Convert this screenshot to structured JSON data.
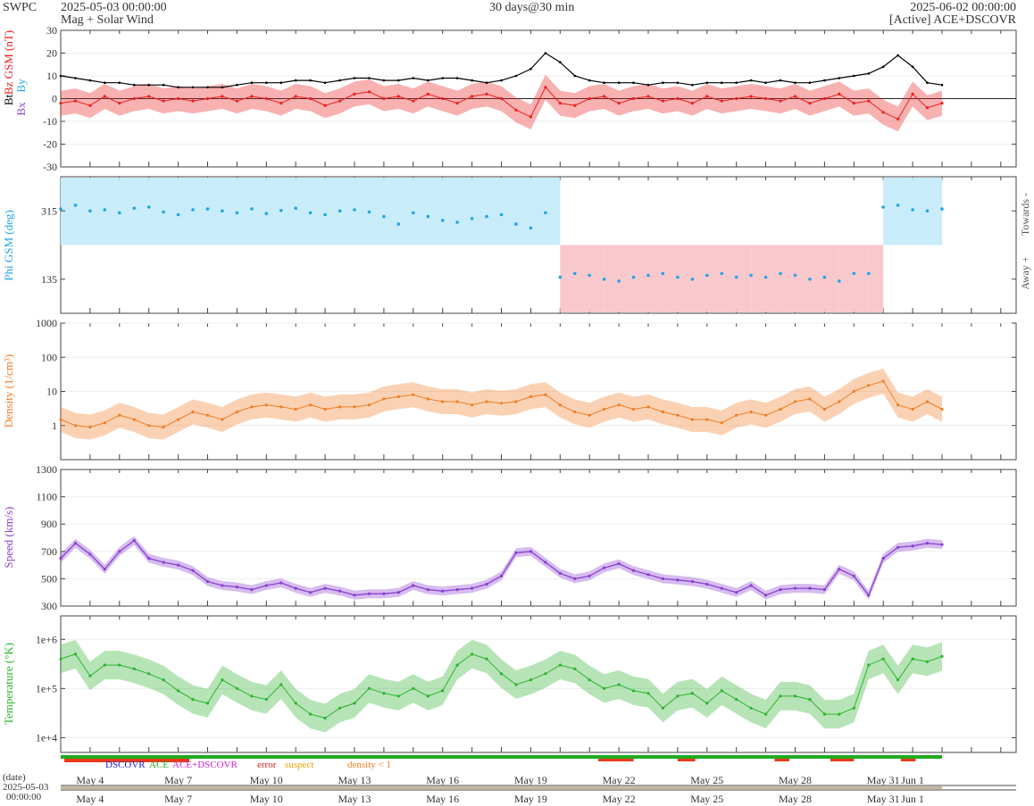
{
  "header": {
    "brand": "SWPC",
    "start": "2025-05-03 00:00:00",
    "source_left": "Mag + Solar Wind",
    "span": "30 days@30 min",
    "end": "2025-06-02 00:00:00",
    "source_right": "[Active] ACE+DSCOVR"
  },
  "colors": {
    "bt": "#000000",
    "bz": "#e8201e",
    "phi": "#21a6e3",
    "density": "#f07d24",
    "speed": "#8a3fd0",
    "temperature": "#2db32d",
    "towards_fill": "#c8ecfa",
    "away_fill": "#f8c8cc",
    "bx": "#8a3fd0",
    "by": "#21a6e3"
  },
  "chart_data": [
    {
      "type": "line",
      "panel": "mag",
      "ylabel": "Bt Bz GSM (nT)",
      "legend": [
        "Bt",
        "Bz",
        "Bx",
        "By"
      ],
      "ylim": [
        -30,
        30
      ],
      "yticks": [
        30,
        20,
        10,
        0,
        -10,
        -20,
        -30
      ],
      "x_days": [
        0,
        0.5,
        1,
        1.5,
        2,
        2.5,
        3,
        3.5,
        4,
        4.5,
        5,
        5.5,
        6,
        6.5,
        7,
        7.5,
        8,
        8.5,
        9,
        9.5,
        10,
        10.5,
        11,
        11.5,
        12,
        12.5,
        13,
        13.5,
        14,
        14.5,
        15,
        15.5,
        16,
        16.5,
        17,
        17.5,
        18,
        18.5,
        19,
        19.5,
        20,
        20.5,
        21,
        21.5,
        22,
        22.5,
        23,
        23.5,
        24,
        24.5,
        25,
        25.5,
        26,
        26.5,
        27,
        27.5,
        28,
        28.5,
        29,
        29.5,
        30
      ],
      "series": [
        {
          "name": "Bt",
          "values": [
            10,
            9,
            8,
            7,
            7,
            6,
            6,
            6,
            5,
            5,
            5,
            5,
            6,
            7,
            7,
            7,
            8,
            8,
            7,
            8,
            9,
            9,
            8,
            8,
            9,
            8,
            9,
            9,
            8,
            7,
            8,
            10,
            13,
            20,
            16,
            10,
            8,
            7,
            7,
            7,
            6,
            7,
            7,
            6,
            7,
            7,
            7,
            8,
            7,
            8,
            7,
            7,
            8,
            9,
            10,
            11,
            14,
            19,
            14,
            7,
            6
          ]
        },
        {
          "name": "Bz",
          "values": [
            -2,
            -1,
            -3,
            1,
            -2,
            0,
            1,
            -1,
            0,
            -1,
            0,
            1,
            -1,
            1,
            0,
            -2,
            1,
            0,
            -3,
            -1,
            2,
            3,
            0,
            1,
            -1,
            2,
            0,
            -2,
            1,
            2,
            0,
            -5,
            -8,
            5,
            -2,
            -3,
            0,
            1,
            -2,
            0,
            1,
            -1,
            0,
            -2,
            1,
            -1,
            0,
            1,
            0,
            -1,
            1,
            -2,
            0,
            2,
            -2,
            -1,
            -6,
            -9,
            2,
            -4,
            -2
          ]
        }
      ]
    },
    {
      "type": "scatter",
      "panel": "phi",
      "ylabel": "Phi GSM (deg)",
      "ylim": [
        45,
        405
      ],
      "yticks": [
        315,
        135
      ],
      "right_labels": [
        "Towards -",
        "Away +"
      ],
      "x_days": [
        0,
        0.5,
        1,
        1.5,
        2,
        2.5,
        3,
        3.5,
        4,
        4.5,
        5,
        5.5,
        6,
        6.5,
        7,
        7.5,
        8,
        8.5,
        9,
        9.5,
        10,
        10.5,
        11,
        11.5,
        12,
        12.5,
        13,
        13.5,
        14,
        14.5,
        15,
        15.5,
        16,
        16.5,
        17,
        17.5,
        18,
        18.5,
        19,
        19.5,
        20,
        20.5,
        21,
        21.5,
        22,
        22.5,
        23,
        23.5,
        24,
        24.5,
        25,
        25.5,
        26,
        26.5,
        27,
        27.5,
        28,
        28.5,
        29,
        29.5,
        30
      ],
      "values": [
        320,
        330,
        315,
        318,
        310,
        322,
        325,
        312,
        305,
        318,
        320,
        315,
        310,
        320,
        308,
        316,
        322,
        310,
        305,
        315,
        318,
        312,
        300,
        280,
        310,
        300,
        290,
        285,
        295,
        300,
        305,
        280,
        270,
        310,
        140,
        150,
        145,
        135,
        130,
        140,
        145,
        150,
        140,
        135,
        145,
        150,
        140,
        145,
        140,
        150,
        145,
        135,
        140,
        130,
        150,
        150,
        325,
        330,
        318,
        315,
        320
      ]
    },
    {
      "type": "line",
      "panel": "density",
      "ylabel": "Density (1/cm³)",
      "ylog": true,
      "ylim": [
        0.1,
        1000
      ],
      "yticks": [
        "1000",
        "100",
        "10",
        "1"
      ],
      "x_days": [
        0,
        0.5,
        1,
        1.5,
        2,
        2.5,
        3,
        3.5,
        4,
        4.5,
        5,
        5.5,
        6,
        6.5,
        7,
        7.5,
        8,
        8.5,
        9,
        9.5,
        10,
        10.5,
        11,
        11.5,
        12,
        12.5,
        13,
        13.5,
        14,
        14.5,
        15,
        15.5,
        16,
        16.5,
        17,
        17.5,
        18,
        18.5,
        19,
        19.5,
        20,
        20.5,
        21,
        21.5,
        22,
        22.5,
        23,
        23.5,
        24,
        24.5,
        25,
        25.5,
        26,
        26.5,
        27,
        27.5,
        28,
        28.5,
        29,
        29.5,
        30
      ],
      "values": [
        1.5,
        1.0,
        0.9,
        1.2,
        2.0,
        1.5,
        1.0,
        0.9,
        1.5,
        2.5,
        2.0,
        1.5,
        2.5,
        3.5,
        4.0,
        3.5,
        3.0,
        4.0,
        3.0,
        3.5,
        3.5,
        4.0,
        6.0,
        7.0,
        8.0,
        6.0,
        5.0,
        5.0,
        4.0,
        5.0,
        4.5,
        5.0,
        7.0,
        8.0,
        4.0,
        2.5,
        2.0,
        3.0,
        4.0,
        3.0,
        3.5,
        2.5,
        2.0,
        1.5,
        1.5,
        1.2,
        2.0,
        2.5,
        2.0,
        3.0,
        5.0,
        6.0,
        3.0,
        5.0,
        10.0,
        15.0,
        20.0,
        4.0,
        3.0,
        5.0,
        3.0
      ]
    },
    {
      "type": "line",
      "panel": "speed",
      "ylabel": "Speed (km/s)",
      "ylim": [
        300,
        1300
      ],
      "yticks": [
        1300,
        1100,
        900,
        700,
        500,
        300
      ],
      "x_days": [
        0,
        0.5,
        1,
        1.5,
        2,
        2.5,
        3,
        3.5,
        4,
        4.5,
        5,
        5.5,
        6,
        6.5,
        7,
        7.5,
        8,
        8.5,
        9,
        9.5,
        10,
        10.5,
        11,
        11.5,
        12,
        12.5,
        13,
        13.5,
        14,
        14.5,
        15,
        15.5,
        16,
        16.5,
        17,
        17.5,
        18,
        18.5,
        19,
        19.5,
        20,
        20.5,
        21,
        21.5,
        22,
        22.5,
        23,
        23.5,
        24,
        24.5,
        25,
        25.5,
        26,
        26.5,
        27,
        27.5,
        28,
        28.5,
        29,
        29.5,
        30
      ],
      "values": [
        650,
        760,
        680,
        570,
        700,
        780,
        650,
        620,
        600,
        560,
        480,
        450,
        440,
        420,
        450,
        470,
        430,
        400,
        430,
        410,
        380,
        390,
        390,
        400,
        450,
        420,
        410,
        420,
        430,
        460,
        520,
        690,
        700,
        620,
        540,
        500,
        520,
        580,
        610,
        560,
        530,
        500,
        490,
        480,
        460,
        430,
        400,
        450,
        380,
        420,
        430,
        430,
        420,
        570,
        520,
        380,
        650,
        730,
        740,
        760,
        750
      ]
    },
    {
      "type": "line",
      "panel": "temperature",
      "ylabel": "Temperature (°K)",
      "ylog": true,
      "ylim": [
        5000,
        3000000
      ],
      "yticks": [
        "1e+6",
        "1e+5",
        "1e+4"
      ],
      "x_days": [
        0,
        0.5,
        1,
        1.5,
        2,
        2.5,
        3,
        3.5,
        4,
        4.5,
        5,
        5.5,
        6,
        6.5,
        7,
        7.5,
        8,
        8.5,
        9,
        9.5,
        10,
        10.5,
        11,
        11.5,
        12,
        12.5,
        13,
        13.5,
        14,
        14.5,
        15,
        15.5,
        16,
        16.5,
        17,
        17.5,
        18,
        18.5,
        19,
        19.5,
        20,
        20.5,
        21,
        21.5,
        22,
        22.5,
        23,
        23.5,
        24,
        24.5,
        25,
        25.5,
        26,
        26.5,
        27,
        27.5,
        28,
        28.5,
        29,
        29.5,
        30
      ],
      "values": [
        400000,
        500000,
        180000,
        300000,
        300000,
        250000,
        200000,
        150000,
        90000,
        60000,
        50000,
        150000,
        100000,
        70000,
        60000,
        120000,
        50000,
        30000,
        25000,
        40000,
        50000,
        100000,
        80000,
        70000,
        100000,
        70000,
        90000,
        300000,
        500000,
        400000,
        200000,
        120000,
        150000,
        200000,
        300000,
        250000,
        150000,
        100000,
        120000,
        90000,
        80000,
        40000,
        70000,
        80000,
        50000,
        90000,
        60000,
        40000,
        30000,
        70000,
        70000,
        60000,
        30000,
        30000,
        40000,
        300000,
        400000,
        150000,
        400000,
        350000,
        450000
      ]
    }
  ],
  "x_axis": {
    "day_labels": [
      "May 4",
      "May 7",
      "May 10",
      "May 13",
      "May 16",
      "May 19",
      "May 22",
      "May 25",
      "May 28",
      "May 31",
      "Jun 1"
    ],
    "day_offsets": [
      1,
      4,
      7,
      10,
      13,
      16,
      19,
      22,
      25,
      28,
      29
    ],
    "date_label": "(date)",
    "start_date": "2025-05-03",
    "start_time": "00:00:00"
  },
  "status_legend": {
    "dscovr": "DSCOVR",
    "ace": "ACE",
    "ace_dscovr": "ACE+DSCOVR",
    "error": "error",
    "suspect": "suspect",
    "density_lt1": "density < 1"
  }
}
